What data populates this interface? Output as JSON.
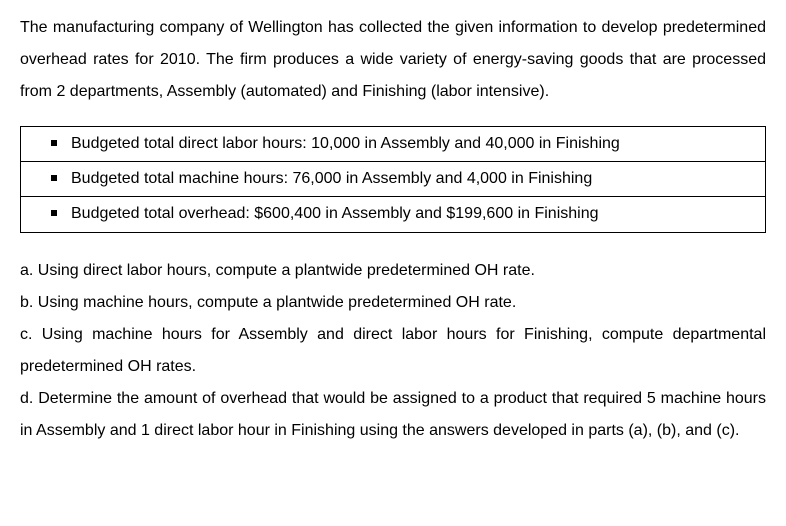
{
  "intro": "The manufacturing company of Wellington has collected the given information to develop predetermined overhead rates for 2010. The firm produces a wide variety of energy-saving goods that are processed from 2 departments, Assembly (automated) and Finishing (labor intensive).",
  "bullets": {
    "row1": "Budgeted total direct labor hours: 10,000 in Assembly and 40,000 in Finishing",
    "row2": "Budgeted total machine hours: 76,000 in Assembly and 4,000 in Finishing",
    "row3": "Budgeted total overhead: $600,400 in Assembly and $199,600 in Finishing"
  },
  "questions": {
    "a": "a. Using direct labor hours, compute a plantwide predetermined OH rate.",
    "b": "b. Using machine hours, compute a plantwide predetermined OH rate.",
    "c": "c. Using machine hours for Assembly and direct labor hours for Finishing, compute departmental predetermined OH rates.",
    "d": "d. Determine the amount of overhead that would be assigned to a product that required 5 machine hours in Assembly and 1 direct labor hour in Finishing using the answers developed in parts (a), (b), and (c)."
  },
  "style": {
    "background_color": "#ffffff",
    "text_color": "#000000",
    "border_color": "#000000",
    "bullet_color": "#000000",
    "font_size_body": 16,
    "line_height_body": 2.0,
    "font_family": "Arial"
  }
}
